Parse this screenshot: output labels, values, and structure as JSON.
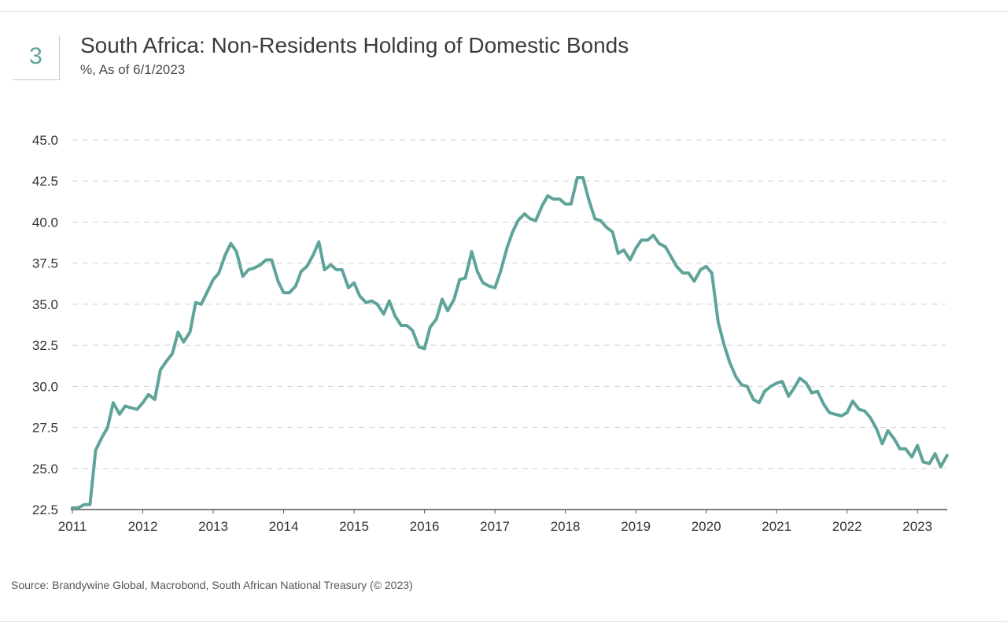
{
  "figure_number": "3",
  "source": "Source: Brandywine Global, Macrobond, South African National Treasury (© 2023)",
  "colors": {
    "line": "#5fa49a",
    "grid": "#d0d0d0",
    "axis": "#555555"
  },
  "chart_data": {
    "type": "line",
    "title": "South Africa: Non-Residents Holding of Domestic Bonds",
    "subtitle": "%, As of 6/1/2023",
    "xlabel": "",
    "ylabel": "",
    "ylim": [
      22.5,
      45.0
    ],
    "xlim": [
      2011.0,
      2023.4
    ],
    "y_ticks": [
      "45.0",
      "42.5",
      "40.0",
      "37.5",
      "35.0",
      "32.5",
      "30.0",
      "27.5",
      "25.0",
      "22.5"
    ],
    "x_ticks": [
      "2011",
      "2012",
      "2013",
      "2014",
      "2015",
      "2016",
      "2017",
      "2018",
      "2019",
      "2020",
      "2021",
      "2022",
      "2023"
    ],
    "grid": "horizontal-dashed",
    "legend": "none",
    "series": [
      {
        "x": [
          2011.0,
          2011.08,
          2011.17,
          2011.25,
          2011.33,
          2011.42,
          2011.5,
          2011.58,
          2011.67,
          2011.75,
          2011.83,
          2011.92,
          2012.0,
          2012.08,
          2012.17,
          2012.25,
          2012.33,
          2012.42,
          2012.5,
          2012.58,
          2012.67,
          2012.75,
          2012.83,
          2012.92,
          2013.0,
          2013.08,
          2013.17,
          2013.25,
          2013.33,
          2013.42,
          2013.5,
          2013.58,
          2013.67,
          2013.75,
          2013.83,
          2013.92,
          2014.0,
          2014.08,
          2014.17,
          2014.25,
          2014.33,
          2014.42,
          2014.5,
          2014.58,
          2014.67,
          2014.75,
          2014.83,
          2014.92,
          2015.0,
          2015.08,
          2015.17,
          2015.25,
          2015.33,
          2015.42,
          2015.5,
          2015.58,
          2015.67,
          2015.75,
          2015.83,
          2015.92,
          2016.0,
          2016.08,
          2016.17,
          2016.25,
          2016.33,
          2016.42,
          2016.5,
          2016.58,
          2016.67,
          2016.75,
          2016.83,
          2016.92,
          2017.0,
          2017.08,
          2017.17,
          2017.25,
          2017.33,
          2017.42,
          2017.5,
          2017.58,
          2017.67,
          2017.75,
          2017.83,
          2017.92,
          2018.0,
          2018.08,
          2018.17,
          2018.25,
          2018.33,
          2018.42,
          2018.5,
          2018.58,
          2018.67,
          2018.75,
          2018.83,
          2018.92,
          2019.0,
          2019.08,
          2019.17,
          2019.25,
          2019.33,
          2019.42,
          2019.5,
          2019.58,
          2019.67,
          2019.75,
          2019.83,
          2019.92,
          2020.0,
          2020.08,
          2020.17,
          2020.25,
          2020.33,
          2020.42,
          2020.5,
          2020.58,
          2020.67,
          2020.75,
          2020.83,
          2020.92,
          2021.0,
          2021.08,
          2021.17,
          2021.25,
          2021.33,
          2021.42,
          2021.5,
          2021.58,
          2021.67,
          2021.75,
          2021.83,
          2021.92,
          2022.0,
          2022.08,
          2022.17,
          2022.25,
          2022.33,
          2022.42,
          2022.5,
          2022.58,
          2022.67,
          2022.75,
          2022.83,
          2022.92,
          2023.0,
          2023.08,
          2023.17,
          2023.25,
          2023.33,
          2023.42
        ],
        "values": [
          22.6,
          22.6,
          22.8,
          22.8,
          26.1,
          26.9,
          27.5,
          29.0,
          28.3,
          28.8,
          28.7,
          28.6,
          29.0,
          29.5,
          29.2,
          31.0,
          31.5,
          32.0,
          33.3,
          32.7,
          33.3,
          35.1,
          35.0,
          35.8,
          36.5,
          36.9,
          38.0,
          38.7,
          38.2,
          36.7,
          37.1,
          37.2,
          37.4,
          37.7,
          37.7,
          36.4,
          35.7,
          35.7,
          36.1,
          37.0,
          37.3,
          38.0,
          38.8,
          37.1,
          37.4,
          37.1,
          37.1,
          36.0,
          36.3,
          35.5,
          35.1,
          35.2,
          35.0,
          34.4,
          35.2,
          34.3,
          33.7,
          33.7,
          33.4,
          32.4,
          32.3,
          33.6,
          34.1,
          35.3,
          34.6,
          35.3,
          36.5,
          36.6,
          38.2,
          37.0,
          36.3,
          36.1,
          36.0,
          37.0,
          38.4,
          39.4,
          40.1,
          40.5,
          40.2,
          40.1,
          41.0,
          41.6,
          41.4,
          41.4,
          41.1,
          41.1,
          42.7,
          42.7,
          41.4,
          40.2,
          40.1,
          39.7,
          39.4,
          38.1,
          38.3,
          37.7,
          38.4,
          38.9,
          38.9,
          39.2,
          38.7,
          38.5,
          37.9,
          37.3,
          36.9,
          36.9,
          36.4,
          37.1,
          37.3,
          36.9,
          33.9,
          32.6,
          31.5,
          30.6,
          30.1,
          30.0,
          29.2,
          29.0,
          29.7,
          30.0,
          30.2,
          30.3,
          29.4,
          29.9,
          30.5,
          30.2,
          29.6,
          29.7,
          28.9,
          28.4,
          28.3,
          28.2,
          28.4,
          29.1,
          28.6,
          28.5,
          28.1,
          27.4,
          26.5,
          27.3,
          26.8,
          26.2,
          26.2,
          25.7,
          26.4,
          25.4,
          25.3,
          25.9,
          25.1,
          25.8
        ]
      }
    ]
  }
}
